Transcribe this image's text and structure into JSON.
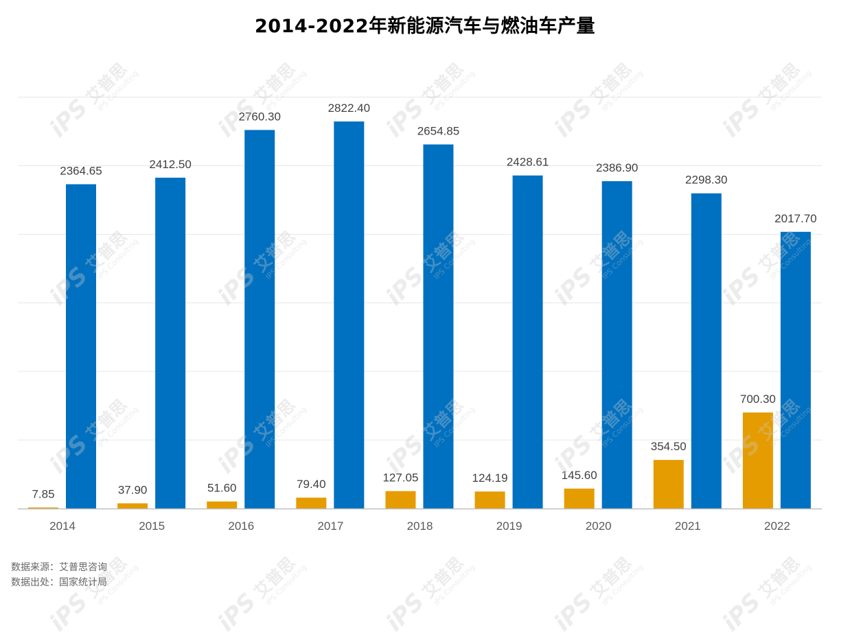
{
  "title": "2014-2022年新能源汽车与燃油车产量",
  "source_lines": [
    "数据来源：艾普思咨询",
    "数据出处：国家统计局"
  ],
  "watermark": {
    "brand": "iPS",
    "cn": "艾普思",
    "sub": "IPS Consulting"
  },
  "colors": {
    "fuel": "#0070C0",
    "nev": "#E59C00",
    "grid": "#E6E6E6",
    "axis": "#BFBFBF",
    "label": "#404040",
    "tick": "#595959"
  },
  "chart_data": {
    "type": "bar",
    "title": "2014-2022年新能源汽车与燃油车产量",
    "categories": [
      "2014",
      "2015",
      "2016",
      "2017",
      "2018",
      "2019",
      "2020",
      "2021",
      "2022"
    ],
    "series": [
      {
        "values": [
          7.85,
          37.9,
          51.6,
          79.4,
          127.05,
          124.19,
          145.6,
          354.5,
          700.3
        ],
        "labels": [
          "7.85",
          "37.90",
          "51.60",
          "79.40",
          "127.05",
          "124.19",
          "145.60",
          "354.50",
          "700.30"
        ]
      },
      {
        "values": [
          2364.65,
          2412.5,
          2760.3,
          2822.4,
          2654.85,
          2428.61,
          2386.9,
          2298.3,
          2017.7
        ],
        "labels": [
          "2364.65",
          "2412.50",
          "2760.30",
          "2822.40",
          "2654.85",
          "2428.61",
          "2386.90",
          "2298.30",
          "2017.70"
        ]
      }
    ],
    "ylim": [
      0,
      3000
    ],
    "grid": true,
    "legend": "none"
  }
}
